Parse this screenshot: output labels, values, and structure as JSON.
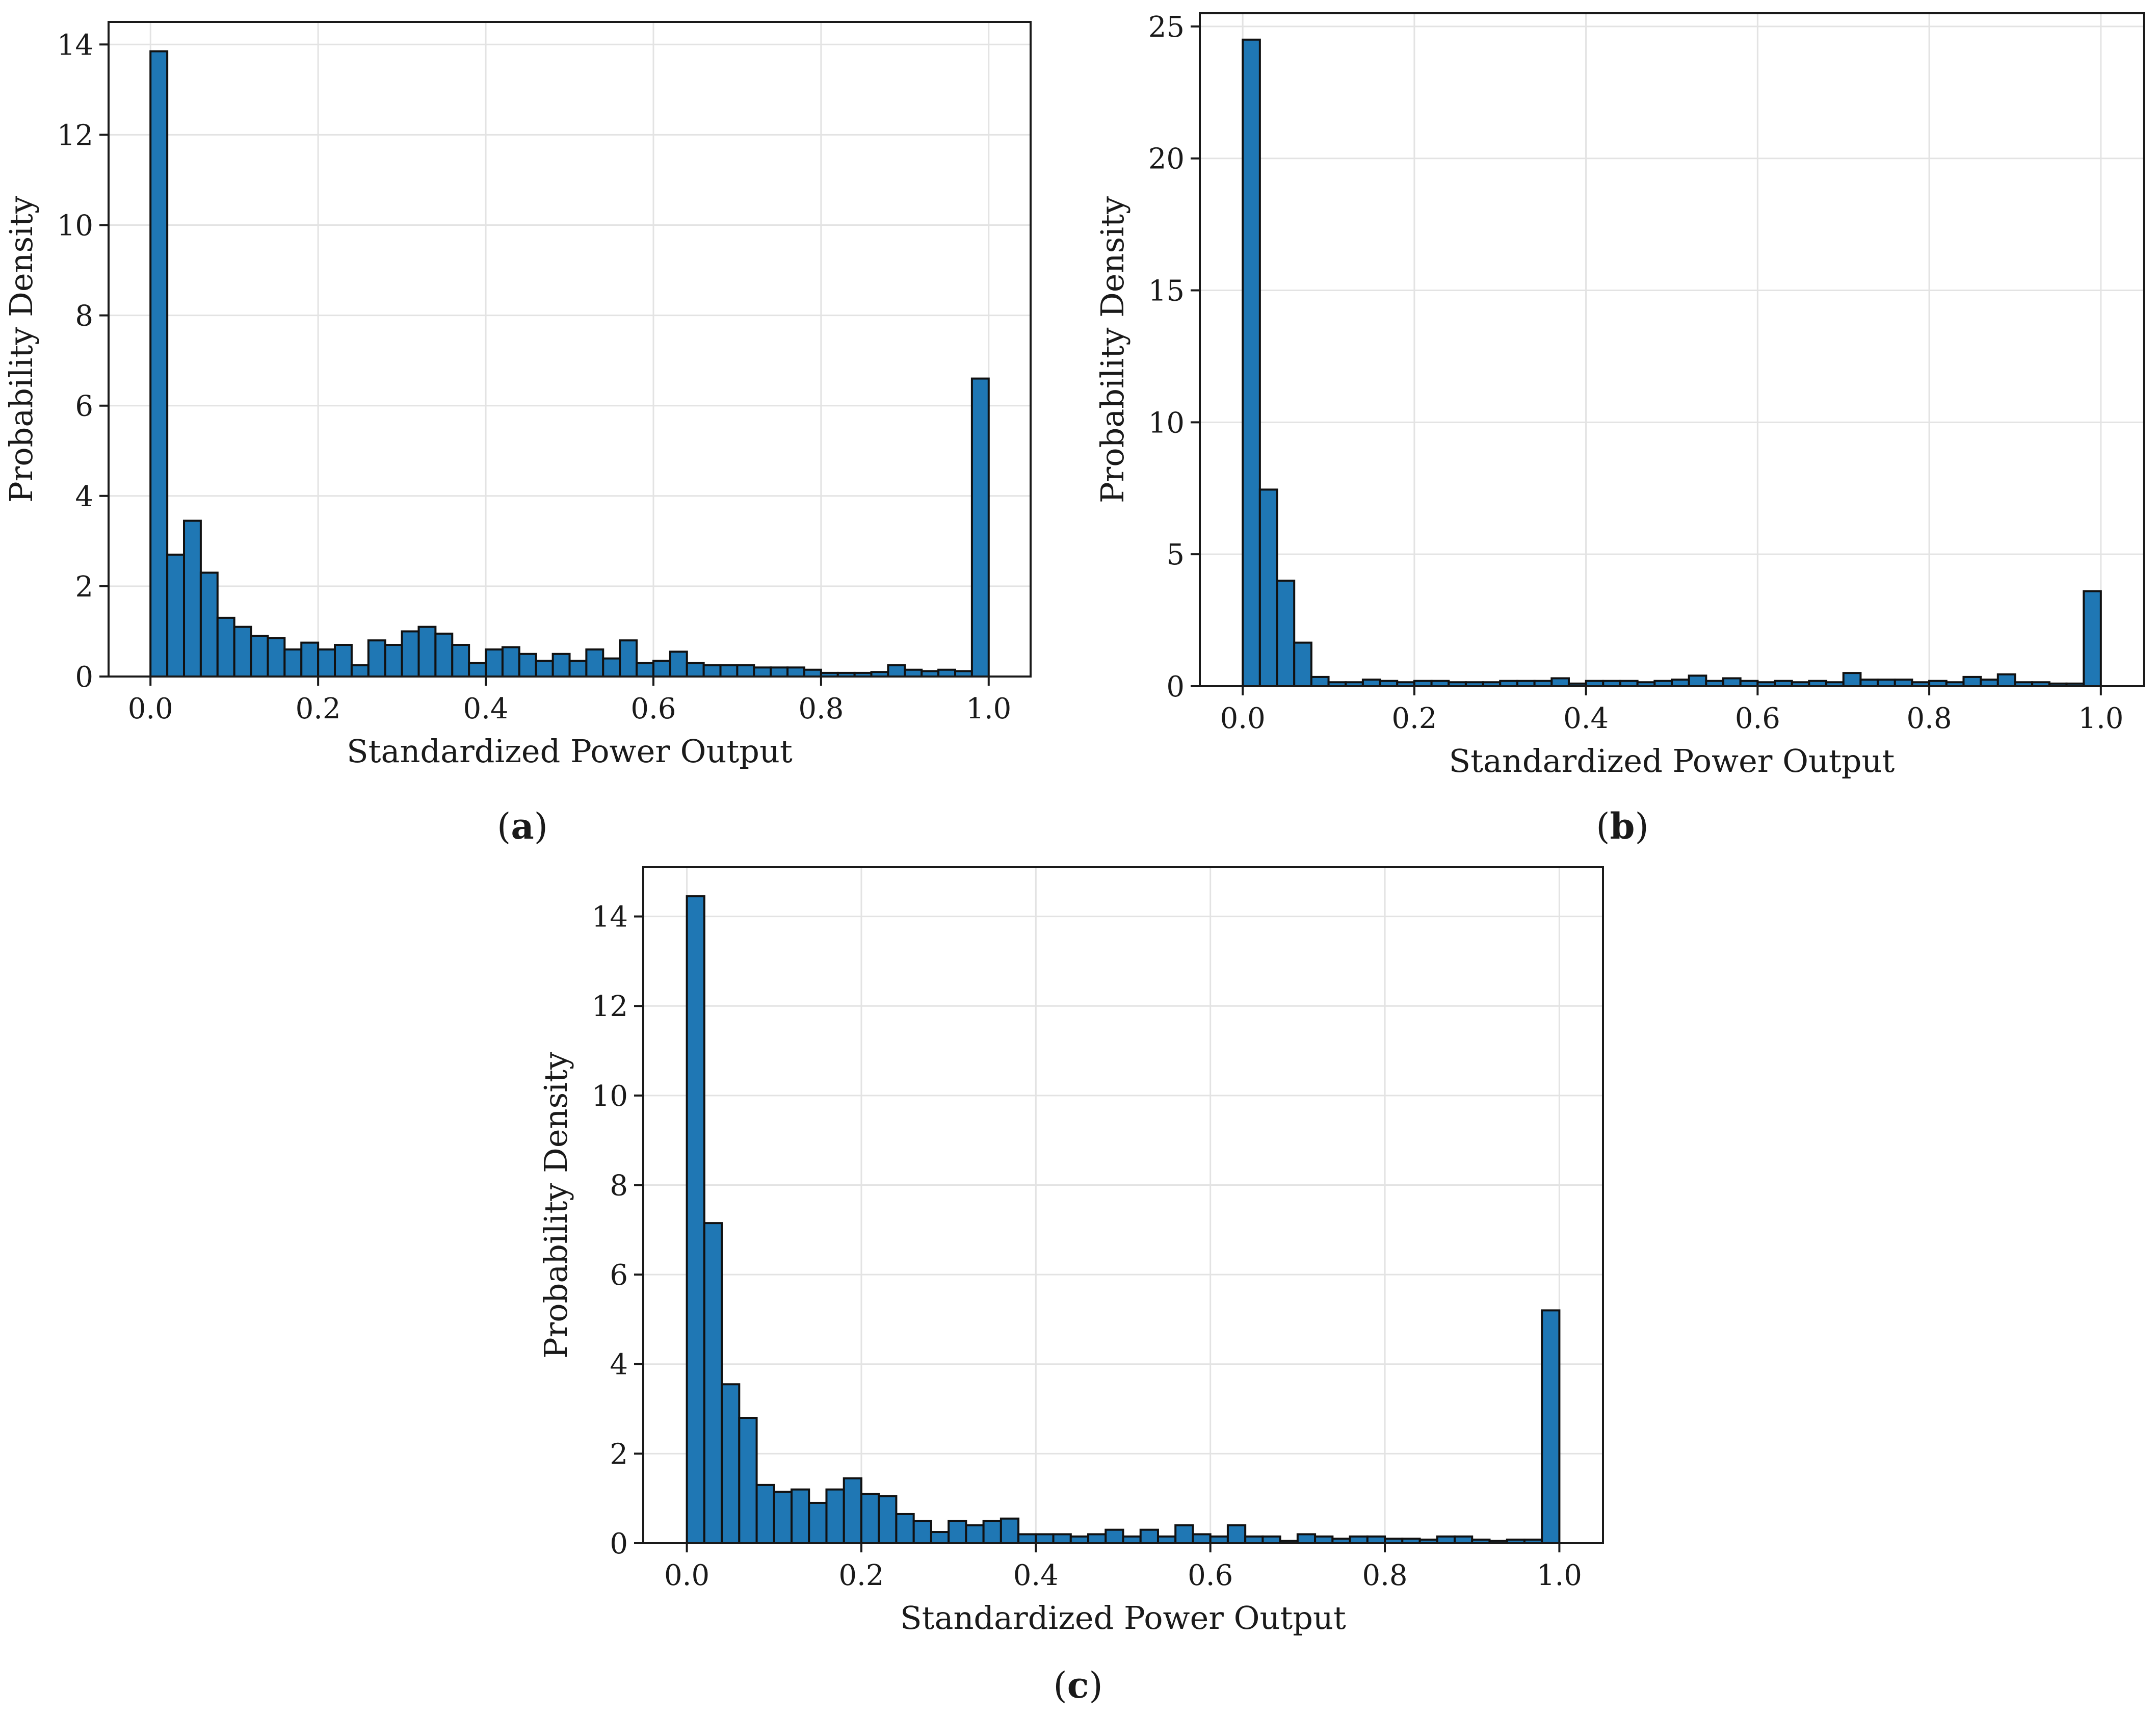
{
  "chart_data": [
    {
      "panel": "(a)",
      "type": "bar",
      "xlabel": "Standardized Power Output",
      "ylabel": "Probability Density",
      "xlim": [
        -0.05,
        1.05
      ],
      "ylim": [
        0,
        14.5
      ],
      "xticks": [
        0.0,
        0.2,
        0.4,
        0.6,
        0.8,
        1.0
      ],
      "xtick_labels": [
        "0.0",
        "0.2",
        "0.4",
        "0.6",
        "0.8",
        "1.0"
      ],
      "yticks": [
        0,
        2,
        4,
        6,
        8,
        10,
        12,
        14
      ],
      "ytick_labels": [
        "0",
        "2",
        "4",
        "6",
        "8",
        "10",
        "12",
        "14"
      ],
      "grid": true,
      "bin_width": 0.02,
      "bin_starts": [
        0.0,
        0.02,
        0.04,
        0.06,
        0.08,
        0.1,
        0.12,
        0.14,
        0.16,
        0.18,
        0.2,
        0.22,
        0.24,
        0.26,
        0.28,
        0.3,
        0.32,
        0.34,
        0.36,
        0.38,
        0.4,
        0.42,
        0.44,
        0.46,
        0.48,
        0.5,
        0.52,
        0.54,
        0.56,
        0.58,
        0.6,
        0.62,
        0.64,
        0.66,
        0.68,
        0.7,
        0.72,
        0.74,
        0.76,
        0.78,
        0.8,
        0.82,
        0.84,
        0.86,
        0.88,
        0.9,
        0.92,
        0.94,
        0.96,
        0.98
      ],
      "values": [
        13.85,
        2.7,
        3.45,
        2.3,
        1.3,
        1.1,
        0.9,
        0.85,
        0.6,
        0.75,
        0.6,
        0.7,
        0.25,
        0.8,
        0.7,
        1.0,
        1.1,
        0.95,
        0.7,
        0.3,
        0.6,
        0.65,
        0.5,
        0.35,
        0.5,
        0.35,
        0.6,
        0.4,
        0.8,
        0.3,
        0.35,
        0.55,
        0.3,
        0.25,
        0.25,
        0.25,
        0.2,
        0.2,
        0.2,
        0.15,
        0.08,
        0.08,
        0.08,
        0.1,
        0.25,
        0.15,
        0.12,
        0.15,
        0.12,
        6.6
      ]
    },
    {
      "panel": "(b)",
      "type": "bar",
      "xlabel": "Standardized Power Output",
      "ylabel": "Probability Density",
      "xlim": [
        -0.05,
        1.05
      ],
      "ylim": [
        0,
        25.5
      ],
      "xticks": [
        0.0,
        0.2,
        0.4,
        0.6,
        0.8,
        1.0
      ],
      "xtick_labels": [
        "0.0",
        "0.2",
        "0.4",
        "0.6",
        "0.8",
        "1.0"
      ],
      "yticks": [
        0,
        5,
        10,
        15,
        20,
        25
      ],
      "ytick_labels": [
        "0",
        "5",
        "10",
        "15",
        "20",
        "25"
      ],
      "grid": true,
      "bin_width": 0.02,
      "bin_starts": [
        0.0,
        0.02,
        0.04,
        0.06,
        0.08,
        0.1,
        0.12,
        0.14,
        0.16,
        0.18,
        0.2,
        0.22,
        0.24,
        0.26,
        0.28,
        0.3,
        0.32,
        0.34,
        0.36,
        0.38,
        0.4,
        0.42,
        0.44,
        0.46,
        0.48,
        0.5,
        0.52,
        0.54,
        0.56,
        0.58,
        0.6,
        0.62,
        0.64,
        0.66,
        0.68,
        0.7,
        0.72,
        0.74,
        0.76,
        0.78,
        0.8,
        0.82,
        0.84,
        0.86,
        0.88,
        0.9,
        0.92,
        0.94,
        0.96,
        0.98
      ],
      "values": [
        24.5,
        7.45,
        4.0,
        1.65,
        0.35,
        0.15,
        0.15,
        0.25,
        0.2,
        0.15,
        0.2,
        0.2,
        0.15,
        0.15,
        0.15,
        0.2,
        0.2,
        0.2,
        0.3,
        0.1,
        0.2,
        0.2,
        0.2,
        0.15,
        0.2,
        0.25,
        0.4,
        0.2,
        0.3,
        0.2,
        0.15,
        0.2,
        0.15,
        0.2,
        0.15,
        0.5,
        0.25,
        0.25,
        0.25,
        0.15,
        0.2,
        0.15,
        0.35,
        0.25,
        0.45,
        0.15,
        0.15,
        0.1,
        0.1,
        3.6
      ]
    },
    {
      "panel": "(c)",
      "type": "bar",
      "xlabel": "Standardized Power Output",
      "ylabel": "Probability Density",
      "xlim": [
        -0.05,
        1.05
      ],
      "ylim": [
        0,
        15.1
      ],
      "xticks": [
        0.0,
        0.2,
        0.4,
        0.6,
        0.8,
        1.0
      ],
      "xtick_labels": [
        "0.0",
        "0.2",
        "0.4",
        "0.6",
        "0.8",
        "1.0"
      ],
      "yticks": [
        0,
        2,
        4,
        6,
        8,
        10,
        12,
        14
      ],
      "ytick_labels": [
        "0",
        "2",
        "4",
        "6",
        "8",
        "10",
        "12",
        "14"
      ],
      "grid": true,
      "bin_width": 0.02,
      "bin_starts": [
        0.0,
        0.02,
        0.04,
        0.06,
        0.08,
        0.1,
        0.12,
        0.14,
        0.16,
        0.18,
        0.2,
        0.22,
        0.24,
        0.26,
        0.28,
        0.3,
        0.32,
        0.34,
        0.36,
        0.38,
        0.4,
        0.42,
        0.44,
        0.46,
        0.48,
        0.5,
        0.52,
        0.54,
        0.56,
        0.58,
        0.6,
        0.62,
        0.64,
        0.66,
        0.68,
        0.7,
        0.72,
        0.74,
        0.76,
        0.78,
        0.8,
        0.82,
        0.84,
        0.86,
        0.88,
        0.9,
        0.92,
        0.94,
        0.96,
        0.98
      ],
      "values": [
        14.45,
        7.15,
        3.55,
        2.8,
        1.3,
        1.15,
        1.2,
        0.9,
        1.2,
        1.45,
        1.1,
        1.05,
        0.65,
        0.5,
        0.25,
        0.5,
        0.4,
        0.5,
        0.55,
        0.2,
        0.2,
        0.2,
        0.15,
        0.2,
        0.3,
        0.15,
        0.3,
        0.15,
        0.4,
        0.2,
        0.15,
        0.4,
        0.15,
        0.15,
        0.05,
        0.2,
        0.15,
        0.1,
        0.15,
        0.15,
        0.1,
        0.1,
        0.08,
        0.15,
        0.15,
        0.08,
        0.05,
        0.08,
        0.08,
        5.2
      ]
    }
  ],
  "colors": {
    "bar_fill": "#1f77b4",
    "bar_edge": "#111111",
    "grid": "#e3e3e3",
    "axes": "#1a1a1a"
  }
}
